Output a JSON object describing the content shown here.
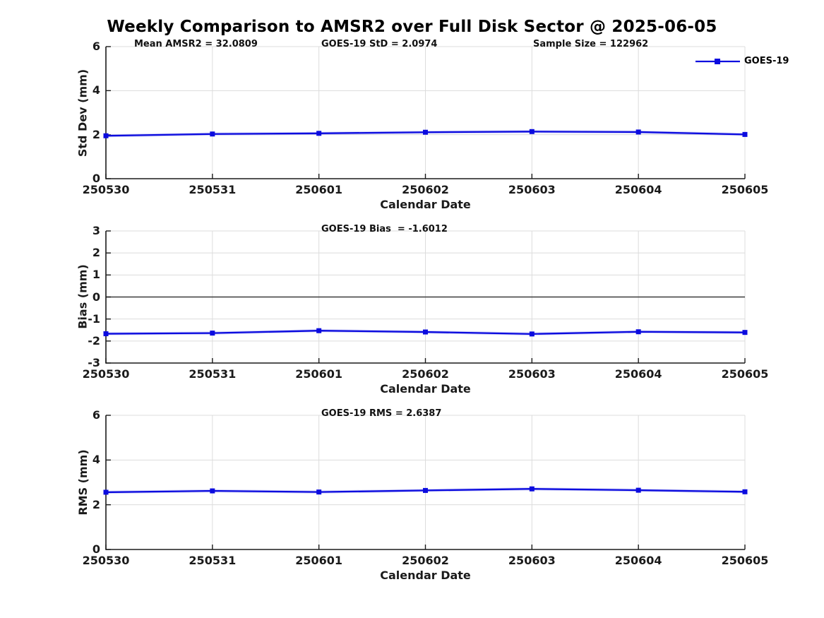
{
  "figure_title": "Weekly Comparison to AMSR2 over Full Disk Sector @ 2025-06-05",
  "legend": {
    "label": "GOES-19"
  },
  "colors": {
    "line": "#0b0bdf",
    "line_halo": "#9a9af0",
    "axis": "#1a1a1a",
    "grid": "#dcdcdc",
    "zero_line": "#3a3a3a"
  },
  "chart_data": [
    {
      "type": "line",
      "x": [
        "250530",
        "250531",
        "250601",
        "250602",
        "250603",
        "250604",
        "250605"
      ],
      "series": [
        {
          "name": "GOES-19",
          "color": "#0b0bdf",
          "marker": "square",
          "values": [
            1.95,
            2.03,
            2.06,
            2.11,
            2.14,
            2.12,
            2.01
          ]
        }
      ],
      "xlabel": "Calendar Date",
      "ylabel": "Std Dev (mm)",
      "ylim": [
        0,
        6
      ],
      "yticks": [
        0,
        2,
        4,
        6
      ],
      "grid": true,
      "legend_position": "northeast-outside",
      "annotations": [
        "Mean AMSR2 = 32.0809",
        "GOES-19 StD = 2.0974",
        "Sample Size = 122962"
      ]
    },
    {
      "type": "line",
      "x": [
        "250530",
        "250531",
        "250601",
        "250602",
        "250603",
        "250604",
        "250605"
      ],
      "series": [
        {
          "name": "GOES-19",
          "color": "#0b0bdf",
          "marker": "square",
          "values": [
            -1.67,
            -1.64,
            -1.53,
            -1.59,
            -1.68,
            -1.58,
            -1.61
          ]
        }
      ],
      "xlabel": "Calendar Date",
      "ylabel": "Bias (mm)",
      "ylim": [
        -3,
        3
      ],
      "yticks": [
        -3,
        -2,
        -1,
        0,
        1,
        2,
        3
      ],
      "grid": true,
      "zero_line": true,
      "annotations": [
        "GOES-19 Bias  = -1.6012"
      ]
    },
    {
      "type": "line",
      "x": [
        "250530",
        "250531",
        "250601",
        "250602",
        "250603",
        "250604",
        "250605"
      ],
      "series": [
        {
          "name": "GOES-19",
          "color": "#0b0bdf",
          "marker": "square",
          "values": [
            2.56,
            2.62,
            2.57,
            2.64,
            2.71,
            2.65,
            2.58
          ]
        }
      ],
      "xlabel": "Calendar Date",
      "ylabel": "RMS (mm)",
      "ylim": [
        0,
        6
      ],
      "yticks": [
        0,
        2,
        4,
        6
      ],
      "grid": true,
      "annotations": [
        "GOES-19 RMS = 2.6387"
      ]
    }
  ]
}
